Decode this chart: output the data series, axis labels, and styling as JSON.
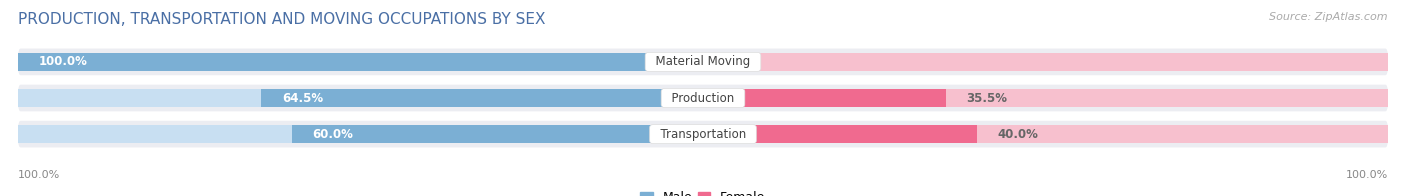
{
  "title": "PRODUCTION, TRANSPORTATION AND MOVING OCCUPATIONS BY SEX",
  "source": "Source: ZipAtlas.com",
  "categories": [
    "Material Moving",
    "Production",
    "Transportation"
  ],
  "male_values": [
    100.0,
    64.5,
    60.0
  ],
  "female_values": [
    0.0,
    35.5,
    40.0
  ],
  "male_color": "#7BAFD4",
  "female_color": "#F06A8F",
  "male_light_color": "#C8DFF2",
  "female_light_color": "#F7C0CE",
  "row_bg_color": "#ECEDF2",
  "bg_color": "#FFFFFF",
  "title_fontsize": 11,
  "source_fontsize": 8,
  "bar_label_fontsize": 8.5,
  "outside_label_fontsize": 8.5,
  "cat_label_fontsize": 8.5,
  "legend_fontsize": 9,
  "axis_label_fontsize": 8,
  "x_left_label": "100.0%",
  "x_right_label": "100.0%",
  "title_color": "#4A6FA5",
  "source_color": "#AAAAAA",
  "outside_label_color": "#666666",
  "cat_label_color": "#444444"
}
